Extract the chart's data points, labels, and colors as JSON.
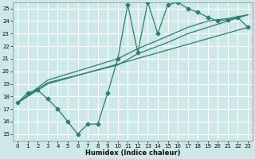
{
  "xlabel": "Humidex (Indice chaleur)",
  "xlim": [
    -0.5,
    23.5
  ],
  "ylim": [
    14.5,
    25.5
  ],
  "xticks": [
    0,
    1,
    2,
    3,
    4,
    5,
    6,
    7,
    8,
    9,
    10,
    11,
    12,
    13,
    14,
    15,
    16,
    17,
    18,
    19,
    20,
    21,
    22,
    23
  ],
  "yticks": [
    15,
    16,
    17,
    18,
    19,
    20,
    21,
    22,
    23,
    24,
    25
  ],
  "bg_color": "#cce8e8",
  "grid_color": "#ffffff",
  "line_color": "#2e7d6e",
  "lines": [
    {
      "x": [
        0,
        1,
        2,
        3,
        4,
        5,
        6,
        7,
        8,
        9,
        10,
        11,
        12,
        13,
        14,
        15,
        16,
        17,
        18,
        19,
        20,
        21,
        22,
        23
      ],
      "y": [
        17.5,
        18.3,
        18.5,
        17.8,
        17.0,
        16.0,
        15.0,
        15.8,
        15.8,
        18.3,
        21.0,
        25.3,
        21.5,
        25.5,
        23.0,
        25.3,
        25.5,
        25.0,
        24.7,
        24.3,
        24.0,
        24.1,
        24.3,
        23.5
      ]
    },
    {
      "x": [
        0,
        3,
        23
      ],
      "y": [
        17.5,
        19.0,
        23.5
      ]
    },
    {
      "x": [
        0,
        3,
        10,
        12,
        15,
        17,
        19,
        21,
        23
      ],
      "y": [
        17.5,
        19.1,
        20.5,
        21.4,
        22.3,
        23.0,
        23.5,
        24.0,
        24.5
      ]
    },
    {
      "x": [
        0,
        3,
        10,
        12,
        15,
        17,
        19,
        21,
        23
      ],
      "y": [
        17.5,
        19.3,
        21.0,
        21.8,
        22.8,
        23.5,
        24.0,
        24.2,
        24.5
      ]
    }
  ]
}
